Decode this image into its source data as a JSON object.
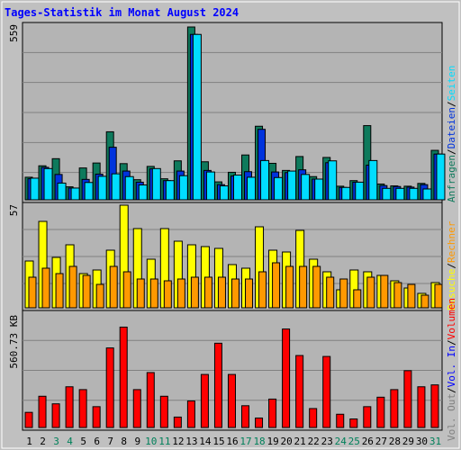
{
  "title": "Tages-Statistik im Monat August 2024",
  "colors": {
    "background": "#c0c0c0",
    "plot_bg": "#b4b4b4",
    "grid": "#808080",
    "title": "#0000ff",
    "hits": "#0e7a5c",
    "files": "#0033dd",
    "pages": "#00ddff",
    "visits": "#ffff00",
    "sites": "#ff9900",
    "kbytes": "#ff0000",
    "weekday": "#000000",
    "weekend": "#00805a"
  },
  "chart_data": [
    {
      "type": "bar",
      "name": "top-panel",
      "y_axis_label": "559",
      "ymax": 559,
      "categories": [
        "1",
        "2",
        "3",
        "4",
        "5",
        "6",
        "7",
        "8",
        "9",
        "10",
        "11",
        "12",
        "13",
        "14",
        "15",
        "16",
        "17",
        "18",
        "19",
        "20",
        "21",
        "22",
        "23",
        "24",
        "25",
        "26",
        "27",
        "28",
        "29",
        "30",
        "31"
      ],
      "series": [
        {
          "name": "Anfragen",
          "color": "#0e7a5c",
          "values": [
            73,
            110,
            133,
            42,
            103,
            119,
            220,
            117,
            65,
            108,
            68,
            126,
            559,
            123,
            58,
            89,
            145,
            238,
            118,
            95,
            140,
            75,
            137,
            44,
            62,
            240,
            51,
            45,
            44,
            53,
            160
          ]
        },
        {
          "name": "Dateien",
          "color": "#0033dd",
          "values": [
            68,
            105,
            82,
            38,
            66,
            83,
            170,
            93,
            57,
            100,
            62,
            93,
            535,
            95,
            49,
            77,
            91,
            228,
            90,
            88,
            97,
            67,
            120,
            40,
            57,
            112,
            46,
            43,
            41,
            49,
            148
          ]
        },
        {
          "name": "Seiten",
          "color": "#00ddff",
          "values": [
            70,
            101,
            54,
            38,
            56,
            76,
            84,
            75,
            48,
            101,
            62,
            78,
            535,
            90,
            45,
            80,
            73,
            127,
            72,
            93,
            82,
            67,
            126,
            40,
            57,
            127,
            37,
            37,
            37,
            35,
            148
          ]
        }
      ]
    },
    {
      "type": "bar",
      "name": "middle-panel",
      "y_axis_label": "57",
      "ymax": 57,
      "categories": [
        "1",
        "2",
        "3",
        "4",
        "5",
        "6",
        "7",
        "8",
        "9",
        "10",
        "11",
        "12",
        "13",
        "14",
        "15",
        "16",
        "17",
        "18",
        "19",
        "20",
        "21",
        "22",
        "23",
        "24",
        "25",
        "26",
        "27",
        "28",
        "29",
        "30",
        "31"
      ],
      "series": [
        {
          "name": "Besuche",
          "color": "#ffff00",
          "values": [
            26,
            48,
            28,
            35,
            19,
            21,
            32,
            57,
            44,
            27,
            44,
            37,
            35,
            34,
            33,
            24,
            22,
            45,
            32,
            31,
            43,
            27,
            20,
            10,
            21,
            20,
            18,
            15,
            11,
            8,
            14
          ]
        },
        {
          "name": "Rechner",
          "color": "#ff9900",
          "values": [
            17,
            22,
            19,
            23,
            18,
            13,
            23,
            20,
            16,
            16,
            15,
            16,
            17,
            17,
            17,
            16,
            16,
            20,
            25,
            23,
            23,
            23,
            17,
            16,
            10,
            17,
            18,
            14,
            13,
            7,
            13
          ]
        }
      ]
    },
    {
      "type": "bar",
      "name": "bottom-panel",
      "y_axis_label": "560.73 KB",
      "ymax": 560.73,
      "categories": [
        "1",
        "2",
        "3",
        "4",
        "5",
        "6",
        "7",
        "8",
        "9",
        "10",
        "11",
        "12",
        "13",
        "14",
        "15",
        "16",
        "17",
        "18",
        "19",
        "20",
        "21",
        "22",
        "23",
        "24",
        "25",
        "26",
        "27",
        "28",
        "29",
        "30",
        "31"
      ],
      "series": [
        {
          "name": "Volumen",
          "color": "#ff0000",
          "values": [
            80,
            165,
            125,
            215,
            200,
            110,
            420,
            530,
            200,
            290,
            165,
            55,
            140,
            280,
            445,
            280,
            115,
            50,
            150,
            520,
            380,
            100,
            375,
            70,
            45,
            110,
            160,
            200,
            300,
            215,
            225
          ]
        }
      ]
    }
  ],
  "legend_right": [
    {
      "text": "Anfragen",
      "color": "#0e7a5c"
    },
    {
      "text": "Dateien",
      "color": "#0033dd"
    },
    {
      "text": "Seiten",
      "color": "#00ddff"
    },
    {
      "text": "Besuche",
      "color": "#ffff00"
    },
    {
      "text": "Rechner",
      "color": "#ff9900"
    },
    {
      "text": "Vol. Out",
      "color": "#808080"
    },
    {
      "text": "Vol. In",
      "color": "#0000ff"
    },
    {
      "text": "Volumen",
      "color": "#ff0000"
    }
  ],
  "weekend_days": [
    3,
    4,
    10,
    11,
    17,
    18,
    24,
    25,
    31
  ]
}
